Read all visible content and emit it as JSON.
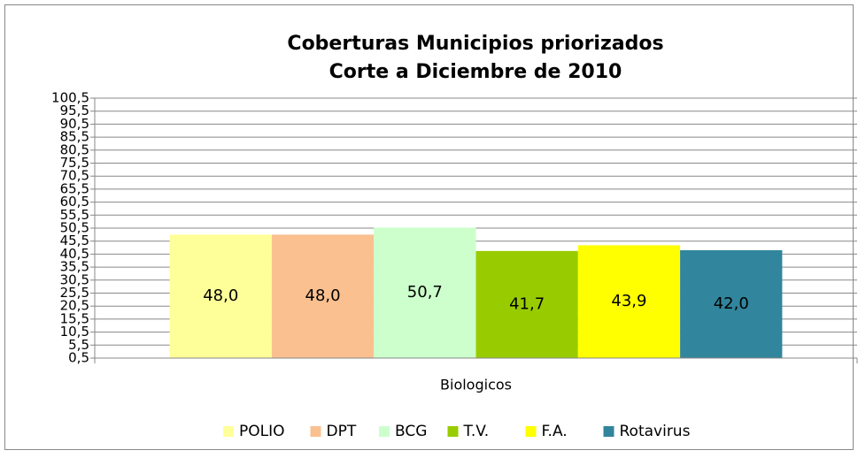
{
  "chart_data": {
    "type": "bar",
    "title": "Coberturas Municipios priorizados",
    "subtitle": "Corte a Diciembre de 2010",
    "categories": [
      "Biologicos"
    ],
    "series": [
      {
        "name": "POLIO",
        "color": "#ffff99",
        "values": [
          48.0
        ],
        "value_labels": [
          "48,0"
        ]
      },
      {
        "name": "DPT",
        "color": "#fac090",
        "values": [
          48.0
        ],
        "value_labels": [
          "48,0"
        ]
      },
      {
        "name": "BCG",
        "color": "#ccffcc",
        "values": [
          50.7
        ],
        "value_labels": [
          "50,7"
        ]
      },
      {
        "name": "T.V.",
        "color": "#99cc00",
        "values": [
          41.7
        ],
        "value_labels": [
          "41,7"
        ]
      },
      {
        "name": "F.A.",
        "color": "#ffff00",
        "values": [
          43.9
        ],
        "value_labels": [
          "43,9"
        ]
      },
      {
        "name": "Rotavirus",
        "color": "#31859c",
        "values": [
          42.0
        ],
        "value_labels": [
          "42,0"
        ]
      }
    ],
    "ylim": [
      0.5,
      100.5
    ],
    "yticks": [
      {
        "value": 0.5,
        "label": "0,5"
      },
      {
        "value": 5.5,
        "label": "5,5"
      },
      {
        "value": 10.5,
        "label": "10,5"
      },
      {
        "value": 15.5,
        "label": "15,5"
      },
      {
        "value": 20.5,
        "label": "20,5"
      },
      {
        "value": 25.5,
        "label": "25,5"
      },
      {
        "value": 30.5,
        "label": "30,5"
      },
      {
        "value": 35.5,
        "label": "35,5"
      },
      {
        "value": 40.5,
        "label": "40,5"
      },
      {
        "value": 45.5,
        "label": "45,5"
      },
      {
        "value": 50.5,
        "label": "50,5"
      },
      {
        "value": 55.5,
        "label": "55,5"
      },
      {
        "value": 60.5,
        "label": "60,5"
      },
      {
        "value": 65.5,
        "label": "65,5"
      },
      {
        "value": 70.5,
        "label": "70,5"
      },
      {
        "value": 75.5,
        "label": "75,5"
      },
      {
        "value": 80.5,
        "label": "80,5"
      },
      {
        "value": 85.5,
        "label": "85,5"
      },
      {
        "value": 90.5,
        "label": "90,5"
      },
      {
        "value": 95.5,
        "label": "95,5"
      },
      {
        "value": 100.5,
        "label": "100,5"
      }
    ],
    "grid": true,
    "legend": "bottom"
  }
}
